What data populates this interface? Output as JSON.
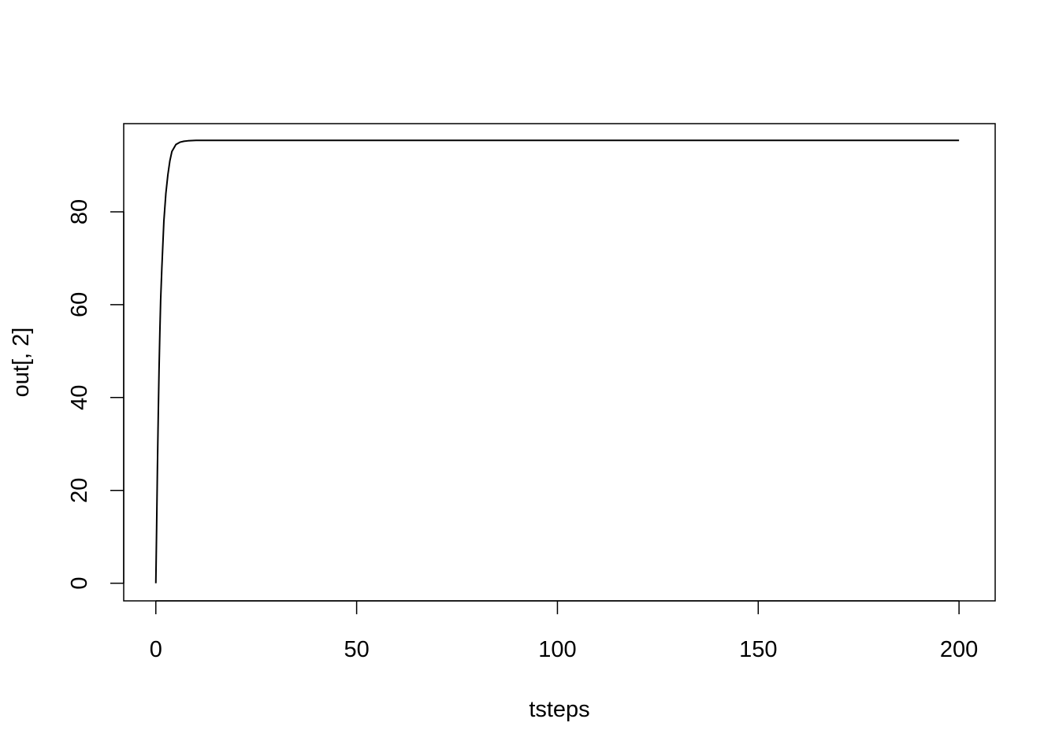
{
  "chart_data": {
    "type": "line",
    "title": "",
    "xlabel": "tsteps",
    "ylabel": "out[, 2]",
    "xlim": [
      -8,
      209
    ],
    "ylim": [
      -3.8,
      99
    ],
    "x_ticks": [
      0,
      50,
      100,
      150,
      200
    ],
    "x_tick_labels": [
      "0",
      "50",
      "100",
      "150",
      "200"
    ],
    "y_ticks": [
      0,
      20,
      40,
      60,
      80
    ],
    "y_tick_labels": [
      "0",
      "20",
      "40",
      "60",
      "80"
    ],
    "grid": false,
    "legend": false,
    "line_color": "#000000",
    "series": [
      {
        "x": [
          0,
          0.2,
          0.4,
          0.6,
          0.8,
          1.0,
          1.2,
          1.5,
          2.0,
          2.5,
          3.0,
          3.5,
          4.0,
          5.0,
          6.0,
          7.0,
          8.0,
          10.0,
          15.0,
          20.0,
          50.0,
          100.0,
          150.0,
          200.0
        ],
        "y": [
          0,
          12,
          25,
          36,
          46,
          54,
          61,
          68,
          78,
          84,
          88,
          91,
          93,
          94.5,
          95,
          95.2,
          95.3,
          95.4,
          95.4,
          95.4,
          95.4,
          95.4,
          95.4,
          95.4
        ]
      }
    ]
  }
}
